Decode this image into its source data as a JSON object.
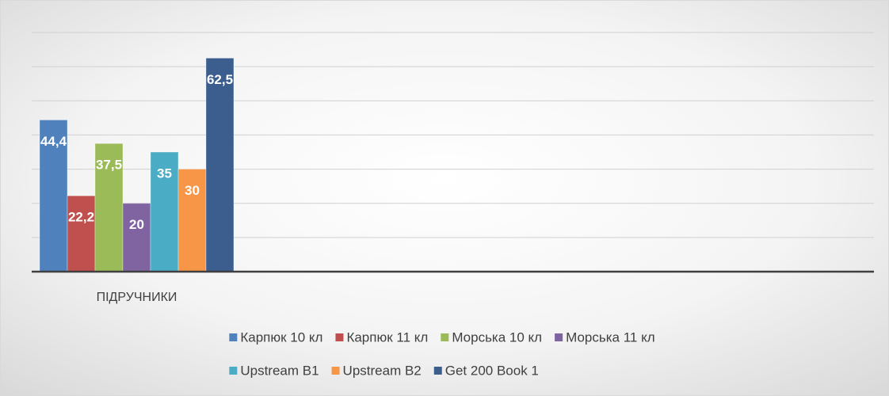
{
  "chart_data": {
    "type": "bar",
    "categories": [
      "ПІДРУЧНИКИ"
    ],
    "series": [
      {
        "name": "Карпюк 10 кл",
        "color": "#4f81bd",
        "values": [
          44.4
        ],
        "value_labels": [
          "44,4"
        ]
      },
      {
        "name": "Карпюк 11 кл",
        "color": "#c0504d",
        "values": [
          22.2
        ],
        "value_labels": [
          "22,2"
        ]
      },
      {
        "name": "Морська 10 кл",
        "color": "#9bbb59",
        "values": [
          37.5
        ],
        "value_labels": [
          "37,5"
        ]
      },
      {
        "name": "Морська 11 кл",
        "color": "#8064a2",
        "values": [
          20
        ],
        "value_labels": [
          "20"
        ]
      },
      {
        "name": "Upstream B1",
        "color": "#4bacc6",
        "values": [
          35
        ],
        "value_labels": [
          "35"
        ]
      },
      {
        "name": "Upstream B2",
        "color": "#f79646",
        "values": [
          30
        ],
        "value_labels": [
          "30"
        ]
      },
      {
        "name": "Get 200 Book 1",
        "color": "#3b5e8f",
        "values": [
          62.5
        ],
        "value_labels": [
          "62,5"
        ]
      }
    ],
    "ylim": [
      0,
      70
    ],
    "yticks": [
      0,
      10,
      20,
      30,
      40,
      50,
      60,
      70
    ],
    "grid": true,
    "legend": "bottom"
  }
}
